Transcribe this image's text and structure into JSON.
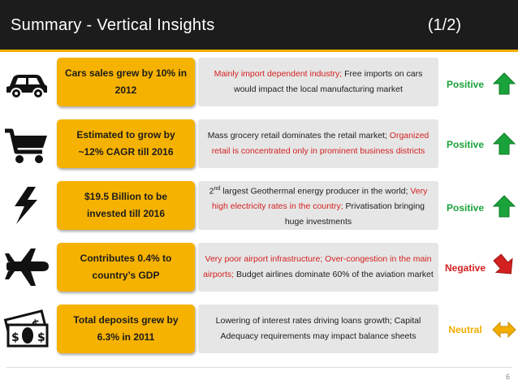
{
  "header": {
    "title": "Summary - Vertical Insights",
    "page_fraction": "(1/2)"
  },
  "rows": [
    {
      "icon": "car-icon",
      "highlight": "Cars sales grew by 10% in 2012",
      "detail_parts": [
        {
          "text": "Mainly import dependent industry;",
          "color": "#d42020"
        },
        {
          "text": " Free imports on cars would impact the local manufacturing market",
          "color": "#1c1c1c"
        }
      ],
      "status": "Positive",
      "status_color": "#1aa33a",
      "trend": "up"
    },
    {
      "icon": "shopping-cart-icon",
      "highlight": "Estimated to grow by ~12% CAGR till 2016",
      "detail_parts": [
        {
          "text": "Mass grocery retail dominates the retail market;",
          "color": "#1c1c1c"
        },
        {
          "text": " Organized retail is concentrated only in prominent business districts",
          "color": "#d42020"
        }
      ],
      "status": "Positive",
      "status_color": "#1aa33a",
      "trend": "up"
    },
    {
      "icon": "lightning-bolt-icon",
      "highlight": "$19.5 Billion to be invested  till 2016",
      "detail_parts": [
        {
          "text": "2",
          "color": "#1c1c1c"
        },
        {
          "text": "nd",
          "color": "#1c1c1c",
          "sup": true
        },
        {
          "text": " largest Geothermal energy producer in the world;",
          "color": "#1c1c1c"
        },
        {
          "text": " Very high electricity rates in the country;",
          "color": "#d42020"
        },
        {
          "text": " Privatisation bringing huge investments",
          "color": "#1c1c1c"
        }
      ],
      "status": "Positive",
      "status_color": "#1aa33a",
      "trend": "up"
    },
    {
      "icon": "airplane-icon",
      "highlight": "Contributes 0.4% to country’s GDP",
      "detail_parts": [
        {
          "text": "Very poor airport infrastructure; Over-congestion in the main airports;",
          "color": "#d42020"
        },
        {
          "text": " Budget airlines dominate 60% of the aviation market",
          "color": "#1c1c1c"
        }
      ],
      "status": "Negative",
      "status_color": "#d42020",
      "trend": "down"
    },
    {
      "icon": "money-bills-icon",
      "highlight": "Total deposits grew by 6.3% in 2011",
      "detail_parts": [
        {
          "text": "Lowering of interest rates driving loans growth; Capital Adequacy requirements may impact balance sheets",
          "color": "#1c1c1c"
        }
      ],
      "status": "Neutral",
      "status_color": "#f2ad00",
      "trend": "flat"
    }
  ],
  "footer": {
    "page_number": "6"
  },
  "colors": {
    "accent": "#f6b200",
    "header_bg": "#1c1c1c",
    "positive": "#1aa33a",
    "negative": "#d42020",
    "neutral": "#f2ad00"
  }
}
